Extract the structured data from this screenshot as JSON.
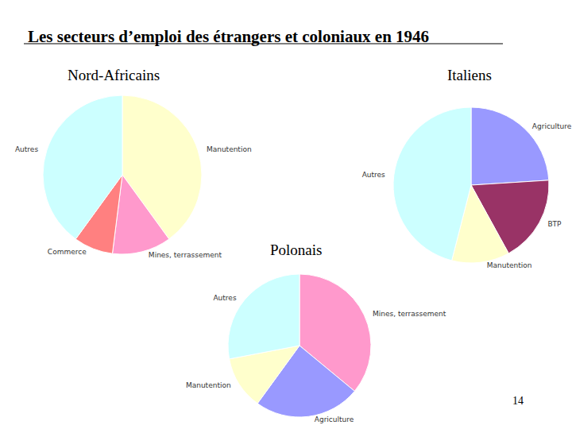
{
  "title": "Les secteurs d’emploi des étrangers et coloniaux en 1946",
  "page_number": 14,
  "chart_data": [
    {
      "type": "pie",
      "title": "Nord-Africains",
      "categories": [
        "Manutention",
        "Mines, terrassement",
        "Commerce",
        "Autres"
      ],
      "values": [
        40,
        12,
        8,
        40
      ],
      "colors": [
        "#ffffcc",
        "#ff99cc",
        "#ff8080",
        "#ccffff"
      ]
    },
    {
      "type": "pie",
      "title": "Italiens",
      "categories": [
        "Agriculture",
        "BTP",
        "Manutention",
        "Autres"
      ],
      "values": [
        24,
        18,
        12,
        46
      ],
      "colors": [
        "#9999ff",
        "#993366",
        "#ffffcc",
        "#ccffff"
      ]
    },
    {
      "type": "pie",
      "title": "Polonais",
      "categories": [
        "Mines, terrassement",
        "Agriculture",
        "Manutention",
        "Autres"
      ],
      "values": [
        36,
        24,
        12,
        28
      ],
      "colors": [
        "#ff99cc",
        "#9999ff",
        "#ffffcc",
        "#ccffff"
      ]
    }
  ]
}
